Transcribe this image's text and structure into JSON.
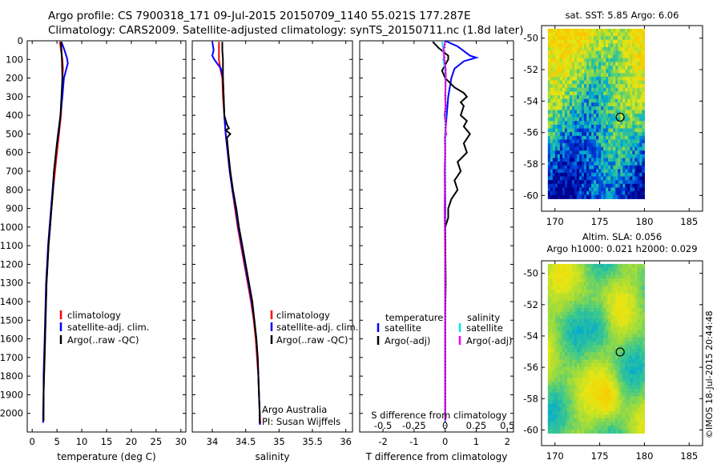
{
  "header": {
    "line1": "Argo profile: CS 7900318_171 09-Jul-2015 20150709_1140 55.021S 177.287E",
    "line2": "Climatology: CARS2009. Satellite-adjusted climatology: synTS_20150711.nc (1.8d later)"
  },
  "side_stamp": "©IMOS 18-Jul-2015 20:44:48",
  "colors": {
    "clim": "#ff0000",
    "sat": "#0000ff",
    "argo": "#000000",
    "sat_s": "#00e5ee",
    "argo_s": "#ff00ff"
  },
  "chart_data": [
    {
      "id": "temperature",
      "type": "line",
      "xlabel": "temperature (deg C)",
      "ylabel": "depth",
      "xlim": [
        -1,
        31
      ],
      "ylim": [
        2100,
        0
      ],
      "xticks": [
        0,
        5,
        10,
        15,
        20,
        25,
        30
      ],
      "yticks": [
        0,
        100,
        200,
        300,
        400,
        500,
        600,
        700,
        800,
        900,
        1000,
        1100,
        1200,
        1300,
        1400,
        1500,
        1600,
        1700,
        1800,
        1900,
        2000
      ],
      "legend": [
        "climatology",
        "satellite-adj. clim.",
        "Argo(..raw -QC)"
      ],
      "series": [
        {
          "name": "climatology",
          "color": "clim",
          "points": [
            [
              5.6,
              5
            ],
            [
              5.8,
              50
            ],
            [
              6.1,
              100
            ],
            [
              6.2,
              150
            ],
            [
              6.1,
              200
            ],
            [
              6.0,
              300
            ],
            [
              5.8,
              400
            ],
            [
              5.4,
              500
            ],
            [
              5.0,
              600
            ],
            [
              4.6,
              700
            ],
            [
              4.2,
              800
            ],
            [
              3.9,
              900
            ],
            [
              3.6,
              1000
            ],
            [
              3.3,
              1100
            ],
            [
              3.1,
              1200
            ],
            [
              2.9,
              1300
            ],
            [
              2.8,
              1400
            ],
            [
              2.7,
              1500
            ],
            [
              2.6,
              1600
            ],
            [
              2.5,
              1700
            ],
            [
              2.4,
              1800
            ],
            [
              2.3,
              1900
            ],
            [
              2.3,
              2000
            ],
            [
              2.2,
              2050
            ]
          ]
        },
        {
          "name": "satellite-adj. clim.",
          "color": "sat",
          "points": [
            [
              5.9,
              5
            ],
            [
              6.5,
              50
            ],
            [
              7.0,
              90
            ],
            [
              7.2,
              120
            ],
            [
              6.9,
              150
            ],
            [
              6.4,
              200
            ],
            [
              6.1,
              300
            ],
            [
              5.7,
              400
            ],
            [
              5.2,
              500
            ],
            [
              4.8,
              600
            ],
            [
              4.4,
              700
            ],
            [
              4.1,
              800
            ],
            [
              3.8,
              900
            ],
            [
              3.5,
              1000
            ],
            [
              3.2,
              1100
            ],
            [
              3.0,
              1200
            ],
            [
              2.8,
              1300
            ],
            [
              2.7,
              1400
            ],
            [
              2.6,
              1500
            ],
            [
              2.5,
              1600
            ],
            [
              2.4,
              1700
            ],
            [
              2.3,
              1800
            ],
            [
              2.3,
              1900
            ],
            [
              2.2,
              2000
            ],
            [
              2.2,
              2050
            ]
          ]
        },
        {
          "name": "Argo(..raw -QC)",
          "color": "argo",
          "points": [
            [
              5.8,
              5
            ],
            [
              5.9,
              50
            ],
            [
              6.0,
              100
            ],
            [
              6.1,
              200
            ],
            [
              6.0,
              250
            ],
            [
              5.9,
              300
            ],
            [
              5.8,
              350
            ],
            [
              5.7,
              400
            ],
            [
              5.5,
              450
            ],
            [
              5.3,
              500
            ],
            [
              5.0,
              550
            ],
            [
              4.8,
              600
            ],
            [
              4.6,
              650
            ],
            [
              4.4,
              700
            ],
            [
              4.2,
              800
            ],
            [
              3.9,
              900
            ],
            [
              3.6,
              1000
            ],
            [
              3.3,
              1100
            ],
            [
              3.1,
              1200
            ],
            [
              2.9,
              1300
            ],
            [
              2.8,
              1400
            ],
            [
              2.7,
              1500
            ],
            [
              2.6,
              1600
            ],
            [
              2.5,
              1700
            ],
            [
              2.4,
              1800
            ],
            [
              2.3,
              1900
            ],
            [
              2.3,
              2000
            ],
            [
              2.3,
              2040
            ]
          ]
        }
      ]
    },
    {
      "id": "salinity",
      "type": "line",
      "xlabel": "salinity",
      "ylabel": "depth",
      "xlim": [
        33.7,
        36.1
      ],
      "ylim": [
        2100,
        0
      ],
      "xticks": [
        34,
        34.5,
        35,
        35.5,
        36
      ],
      "legend": [
        "climatology",
        "satellite-adj. clim.",
        "Argo(..raw -QC)"
      ],
      "note": [
        "Argo Australia",
        "PI: Susan Wijffels"
      ],
      "series": [
        {
          "name": "climatology",
          "color": "clim",
          "points": [
            [
              34.1,
              5
            ],
            [
              34.1,
              100
            ],
            [
              34.12,
              150
            ],
            [
              34.15,
              200
            ],
            [
              34.16,
              300
            ],
            [
              34.18,
              400
            ],
            [
              34.2,
              500
            ],
            [
              34.23,
              600
            ],
            [
              34.26,
              700
            ],
            [
              34.3,
              800
            ],
            [
              34.34,
              900
            ],
            [
              34.38,
              1000
            ],
            [
              34.43,
              1100
            ],
            [
              34.48,
              1200
            ],
            [
              34.53,
              1300
            ],
            [
              34.58,
              1400
            ],
            [
              34.62,
              1500
            ],
            [
              34.65,
              1600
            ],
            [
              34.67,
              1700
            ],
            [
              34.69,
              1800
            ],
            [
              34.7,
              1900
            ],
            [
              34.71,
              2000
            ],
            [
              34.72,
              2060
            ]
          ]
        },
        {
          "name": "satellite-adj. clim.",
          "color": "sat",
          "points": [
            [
              34.0,
              5
            ],
            [
              34.02,
              50
            ],
            [
              34.0,
              80
            ],
            [
              34.03,
              100
            ],
            [
              34.13,
              150
            ],
            [
              34.16,
              200
            ],
            [
              34.17,
              300
            ],
            [
              34.18,
              400
            ],
            [
              34.2,
              500
            ],
            [
              34.23,
              600
            ],
            [
              34.26,
              700
            ],
            [
              34.3,
              800
            ],
            [
              34.35,
              900
            ],
            [
              34.39,
              1000
            ],
            [
              34.44,
              1100
            ],
            [
              34.49,
              1200
            ],
            [
              34.54,
              1300
            ],
            [
              34.59,
              1400
            ],
            [
              34.63,
              1500
            ],
            [
              34.66,
              1600
            ],
            [
              34.68,
              1700
            ],
            [
              34.69,
              1800
            ],
            [
              34.7,
              1900
            ],
            [
              34.71,
              2000
            ],
            [
              34.71,
              2060
            ]
          ]
        },
        {
          "name": "Argo(..raw -QC)",
          "color": "argo",
          "points": [
            [
              34.15,
              5
            ],
            [
              34.15,
              50
            ],
            [
              34.16,
              100
            ],
            [
              34.16,
              200
            ],
            [
              34.17,
              300
            ],
            [
              34.18,
              400
            ],
            [
              34.22,
              450
            ],
            [
              34.25,
              470
            ],
            [
              34.2,
              480
            ],
            [
              34.27,
              500
            ],
            [
              34.22,
              520
            ],
            [
              34.24,
              600
            ],
            [
              34.27,
              700
            ],
            [
              34.31,
              800
            ],
            [
              34.36,
              900
            ],
            [
              34.4,
              1000
            ],
            [
              34.45,
              1100
            ],
            [
              34.5,
              1200
            ],
            [
              34.55,
              1300
            ],
            [
              34.6,
              1400
            ],
            [
              34.63,
              1500
            ],
            [
              34.66,
              1600
            ],
            [
              34.68,
              1700
            ],
            [
              34.69,
              1800
            ],
            [
              34.7,
              1900
            ],
            [
              34.71,
              2000
            ],
            [
              34.71,
              2050
            ]
          ]
        }
      ]
    },
    {
      "id": "difference",
      "type": "line",
      "xlabel": "T difference from climatology",
      "xlabel_top": "S difference from climatology",
      "xlim": [
        -2.75,
        2.2
      ],
      "ylim": [
        2100,
        0
      ],
      "xticks": [
        -2,
        -1,
        0,
        1,
        2
      ],
      "xticks_s": [
        -0.5,
        -0.25,
        0,
        0.25,
        0.5
      ],
      "legend_titles": [
        "temperature",
        "salinity"
      ],
      "legend": [
        "satellite",
        "Argo(-adj)",
        "satellite",
        "Argo(-adj)"
      ],
      "series": [
        {
          "name": "T satellite",
          "color": "sat",
          "points": [
            [
              0.0,
              0
            ],
            [
              0.4,
              30
            ],
            [
              0.8,
              80
            ],
            [
              1.0,
              90
            ],
            [
              0.6,
              110
            ],
            [
              0.3,
              150
            ],
            [
              0.2,
              200
            ],
            [
              0.1,
              300
            ],
            [
              0.0,
              500
            ],
            [
              0.0,
              2050
            ]
          ]
        },
        {
          "name": "T Argo(-adj)",
          "color": "argo",
          "points": [
            [
              -0.4,
              5
            ],
            [
              -0.2,
              40
            ],
            [
              0.1,
              80
            ],
            [
              0.1,
              100
            ],
            [
              -0.1,
              160
            ],
            [
              0.0,
              200
            ],
            [
              0.3,
              250
            ],
            [
              0.6,
              280
            ],
            [
              0.7,
              300
            ],
            [
              0.5,
              330
            ],
            [
              0.6,
              350
            ],
            [
              0.5,
              400
            ],
            [
              0.7,
              430
            ],
            [
              0.6,
              460
            ],
            [
              0.8,
              500
            ],
            [
              0.6,
              550
            ],
            [
              0.7,
              600
            ],
            [
              0.4,
              650
            ],
            [
              0.5,
              700
            ],
            [
              0.3,
              750
            ],
            [
              0.4,
              800
            ],
            [
              0.2,
              850
            ],
            [
              0.1,
              900
            ],
            [
              0.1,
              950
            ],
            [
              0.0,
              1000
            ],
            [
              0.02,
              1300
            ],
            [
              0.0,
              1500
            ],
            [
              0.0,
              2040
            ]
          ]
        },
        {
          "name": "S satellite",
          "color": "sat_s",
          "points": [
            [
              -0.09,
              5
            ],
            [
              -0.07,
              50
            ],
            [
              -0.03,
              80
            ],
            [
              -0.06,
              100
            ],
            [
              0.0,
              150
            ],
            [
              0.01,
              200
            ],
            [
              0.01,
              400
            ],
            [
              0.0,
              600
            ],
            [
              -0.01,
              800
            ],
            [
              -0.02,
              900
            ],
            [
              -0.01,
              1000
            ],
            [
              0.0,
              1200
            ],
            [
              0.0,
              2050
            ]
          ]
        },
        {
          "name": "S Argo(-adj)",
          "color": "argo_s",
          "points": [
            [
              0.0,
              5
            ],
            [
              -0.05,
              50
            ],
            [
              -0.03,
              100
            ],
            [
              0.02,
              150
            ],
            [
              0.02,
              200
            ],
            [
              0.01,
              250
            ],
            [
              0.0,
              300
            ],
            [
              0.02,
              350
            ],
            [
              -0.02,
              400
            ],
            [
              0.03,
              450
            ],
            [
              0.01,
              480
            ],
            [
              0.04,
              500
            ],
            [
              -0.01,
              520
            ],
            [
              0.0,
              600
            ],
            [
              -0.02,
              700
            ],
            [
              -0.01,
              800
            ],
            [
              -0.02,
              900
            ],
            [
              -0.01,
              1000
            ],
            [
              0.0,
              1200
            ],
            [
              0.0,
              2040
            ]
          ]
        }
      ]
    },
    {
      "id": "sst_map",
      "type": "heatmap",
      "title": "sat. SST: 5.85 Argo: 6.06",
      "xlim": [
        168.5,
        186.5
      ],
      "ylim": [
        -61,
        -49.2
      ],
      "xticks": [
        170,
        175,
        180,
        185
      ],
      "yticks": [
        -50,
        -52,
        -54,
        -56,
        -58,
        -60
      ],
      "marker": [
        177.287,
        -55.021
      ]
    },
    {
      "id": "sla_map",
      "type": "heatmap",
      "title": "Altim. SLA: 0.056",
      "subtitle": "Argo h1000: 0.021 h2000: 0.029",
      "xlim": [
        168.5,
        186.5
      ],
      "ylim": [
        -61,
        -49.2
      ],
      "xticks": [
        170,
        175,
        180,
        185
      ],
      "yticks": [
        -50,
        -52,
        -54,
        -56,
        -58,
        -60
      ],
      "marker": [
        177.287,
        -55.021
      ]
    }
  ]
}
